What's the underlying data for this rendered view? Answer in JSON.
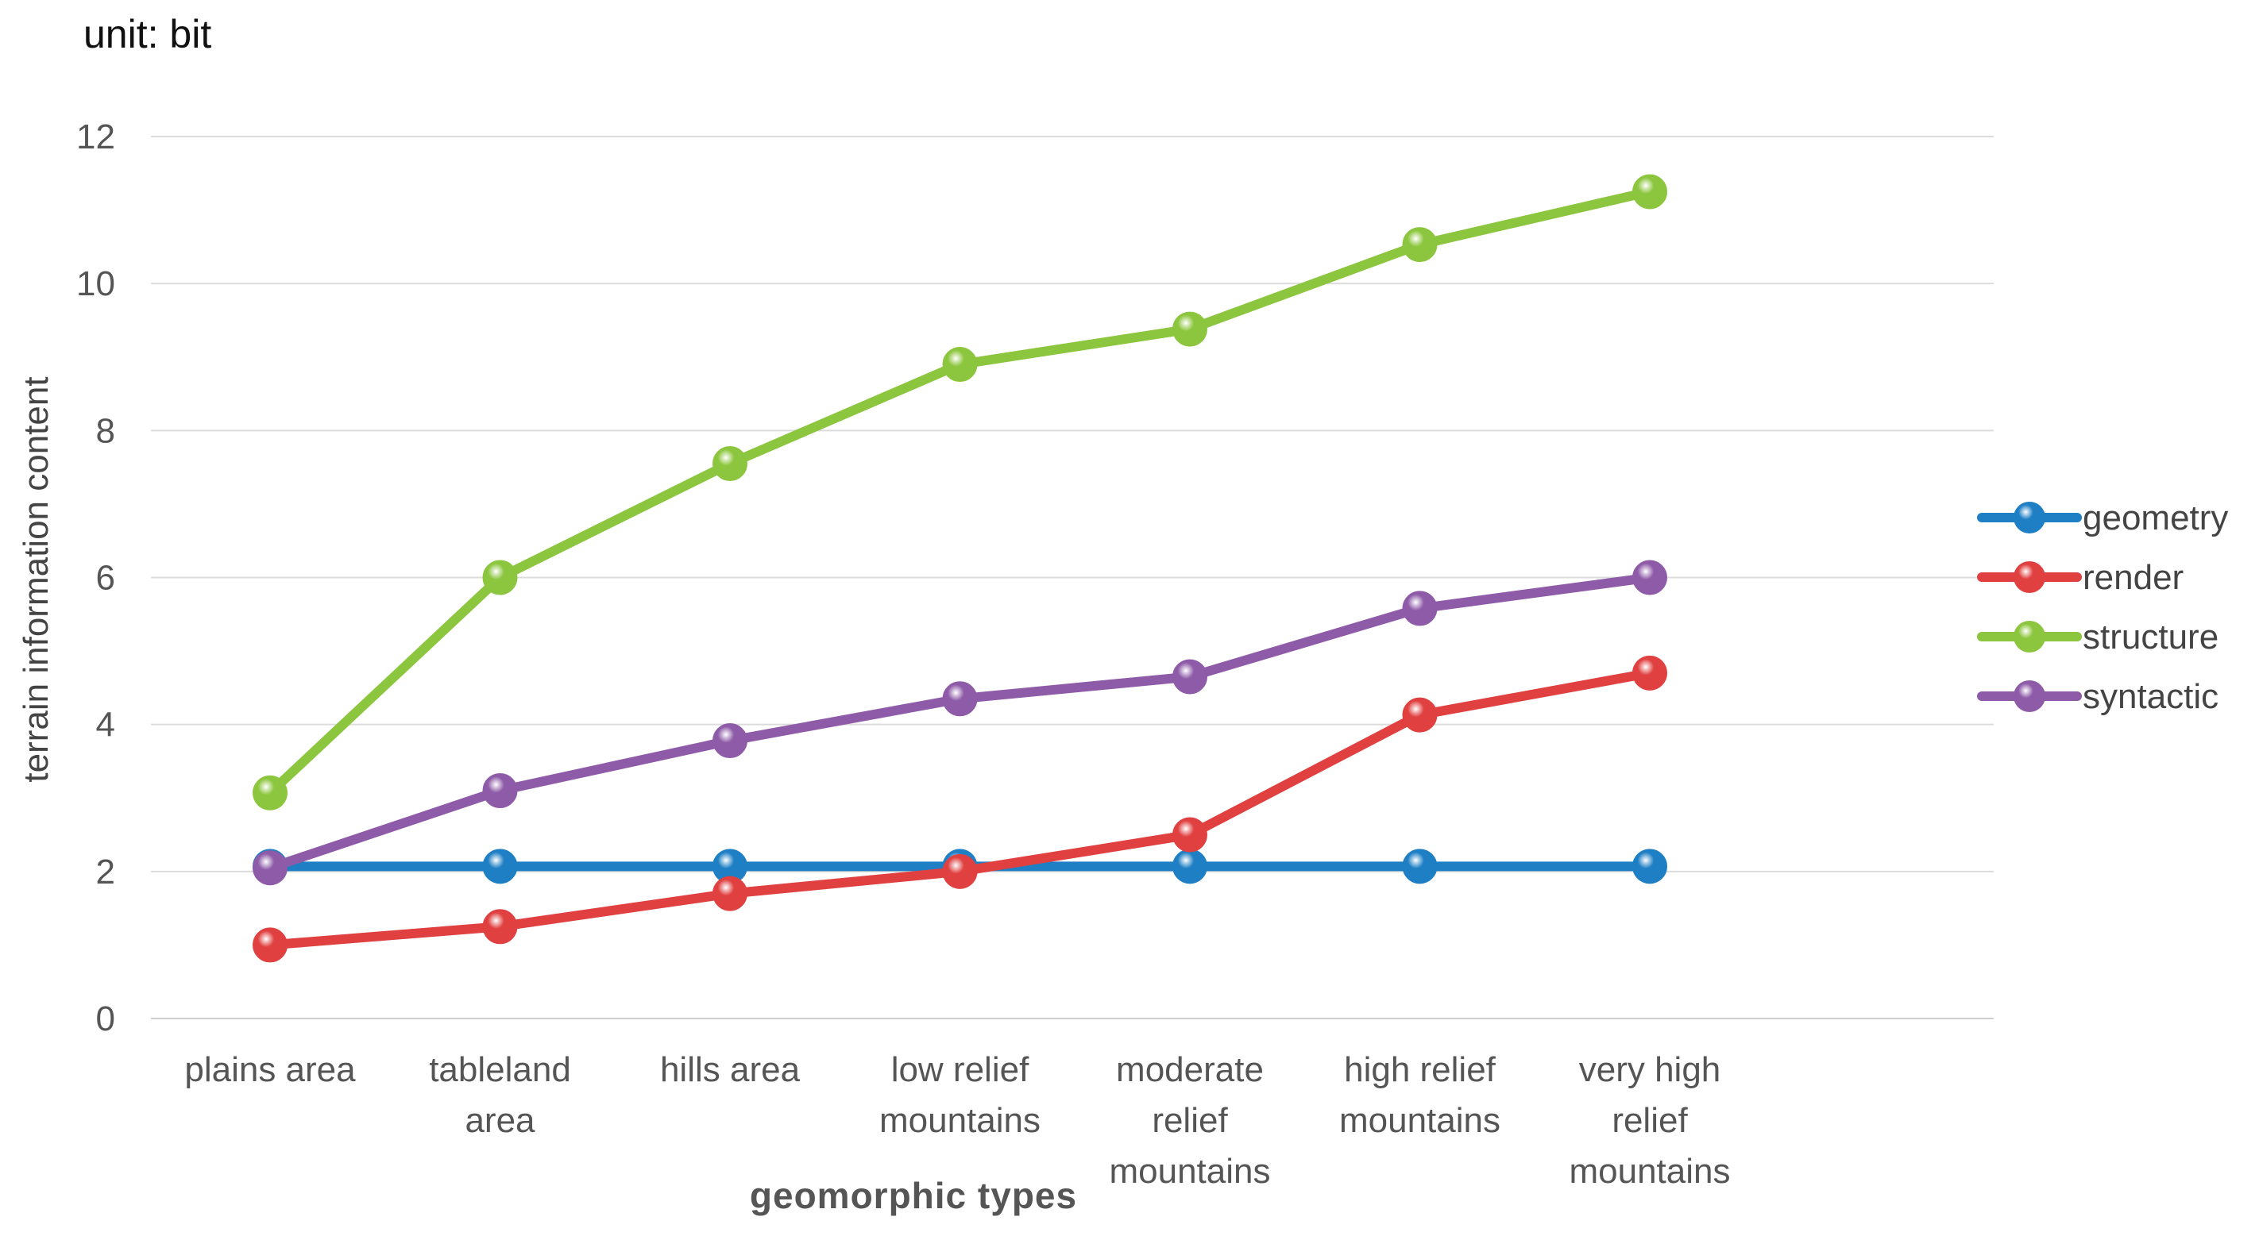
{
  "chart_data": {
    "type": "line",
    "unit_label": "unit: bit",
    "ylabel": "terrain information content",
    "xlabel": "geomorphic types",
    "ylim": [
      0,
      12
    ],
    "yticks": [
      "0",
      "2",
      "4",
      "6",
      "8",
      "10",
      "12"
    ],
    "categories": [
      "plains area",
      "tableland area",
      "hills area",
      "low relief mountains",
      "moderate relief mountains",
      "high relief mountains",
      "very high relief mountains"
    ],
    "category_lines": [
      [
        "plains area"
      ],
      [
        "tableland",
        "area"
      ],
      [
        "hills area"
      ],
      [
        "low relief",
        "mountains"
      ],
      [
        "moderate",
        "relief",
        "mountains"
      ],
      [
        "high relief",
        "mountains"
      ],
      [
        "very high",
        "relief",
        "mountains"
      ]
    ],
    "series": [
      {
        "name": "geometry",
        "color": "#1f7fc4",
        "values": [
          2.07,
          2.07,
          2.07,
          2.07,
          2.07,
          2.07,
          2.07
        ]
      },
      {
        "name": "render",
        "color": "#e04040",
        "values": [
          1.0,
          1.25,
          1.7,
          2.0,
          2.5,
          4.13,
          4.7
        ]
      },
      {
        "name": "structure",
        "color": "#8cc63e",
        "values": [
          3.07,
          6.0,
          7.55,
          8.9,
          9.38,
          10.53,
          11.25
        ]
      },
      {
        "name": "syntactic",
        "color": "#8e5ba8",
        "values": [
          2.05,
          3.1,
          3.78,
          4.35,
          4.65,
          5.58,
          6.0
        ]
      }
    ],
    "grid": true,
    "legend": "right"
  }
}
